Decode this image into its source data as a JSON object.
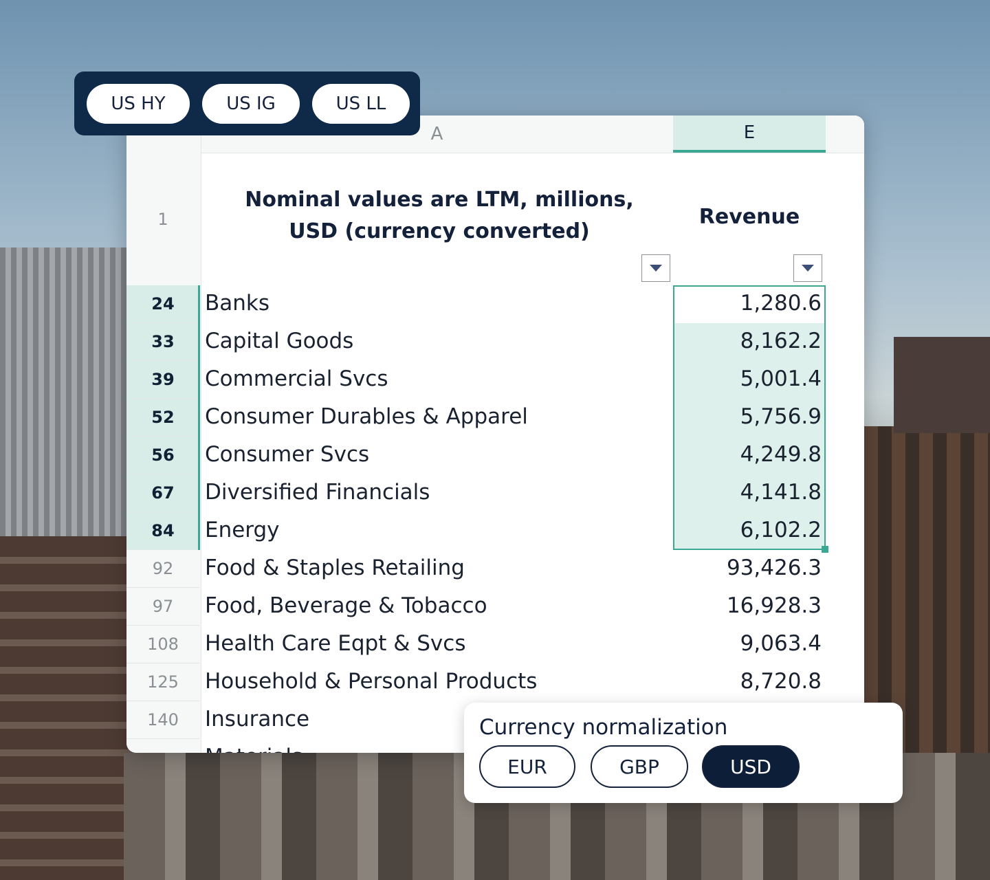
{
  "tabs": [
    "US HY",
    "US IG",
    "US LL"
  ],
  "columns": [
    "A",
    "E"
  ],
  "header": {
    "row_number": "1",
    "title": "Nominal values are LTM, millions, USD (currency converted)",
    "revenue_header": "Revenue"
  },
  "rows": [
    {
      "row": "24",
      "label": "Banks",
      "value": "1,280.6",
      "selected": true
    },
    {
      "row": "33",
      "label": "Capital Goods",
      "value": "8,162.2",
      "selected": true
    },
    {
      "row": "39",
      "label": "Commercial Svcs",
      "value": "5,001.4",
      "selected": true
    },
    {
      "row": "52",
      "label": "Consumer Durables & Apparel",
      "value": "5,756.9",
      "selected": true
    },
    {
      "row": "56",
      "label": "Consumer Svcs",
      "value": "4,249.8",
      "selected": true
    },
    {
      "row": "67",
      "label": "Diversified Financials",
      "value": "4,141.8",
      "selected": true
    },
    {
      "row": "84",
      "label": "Energy",
      "value": "6,102.2",
      "selected": true
    },
    {
      "row": "92",
      "label": "Food & Staples Retailing",
      "value": "93,426.3",
      "selected": false
    },
    {
      "row": "97",
      "label": "Food, Beverage & Tobacco",
      "value": "16,928.3",
      "selected": false
    },
    {
      "row": "108",
      "label": "Health Care Eqpt & Svcs",
      "value": "9,063.4",
      "selected": false
    },
    {
      "row": "125",
      "label": "Household & Personal Products",
      "value": "8,720.8",
      "selected": false
    },
    {
      "row": "140",
      "label": "Insurance",
      "value": "",
      "selected": false
    },
    {
      "label": "Materials",
      "selected": false
    }
  ],
  "currency": {
    "title": "Currency normalization",
    "options": [
      "EUR",
      "GBP",
      "USD"
    ],
    "selected": "USD"
  }
}
